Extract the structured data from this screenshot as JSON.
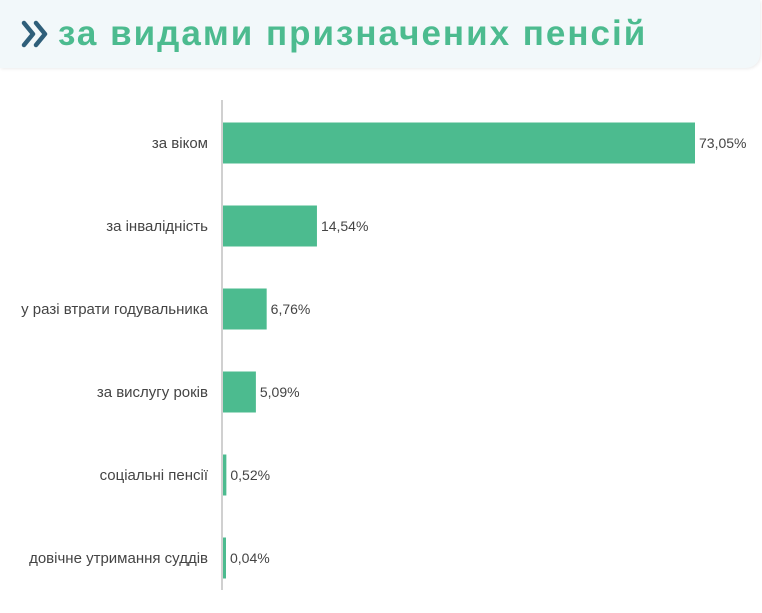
{
  "header": {
    "title": "за видами призначених пенсій",
    "icon": "double-chevron-right-icon",
    "title_color": "#4cbb8f",
    "icon_color": "#2f5f7a"
  },
  "chart_data": {
    "type": "bar",
    "orientation": "horizontal",
    "categories": [
      "за віком",
      "за інвалідність",
      "у разі втрати годувальника",
      "за вислугу років",
      "соціальні пенсії",
      "довічне утримання суддів"
    ],
    "values": [
      73.05,
      14.54,
      6.76,
      5.09,
      0.52,
      0.04
    ],
    "value_labels": [
      "73,05%",
      "14,54%",
      "6,76%",
      "5,09%",
      "0,52%",
      "0,04%"
    ],
    "xlim": [
      0,
      73.05
    ],
    "bar_color": "#4cbb8f",
    "grid": false
  }
}
